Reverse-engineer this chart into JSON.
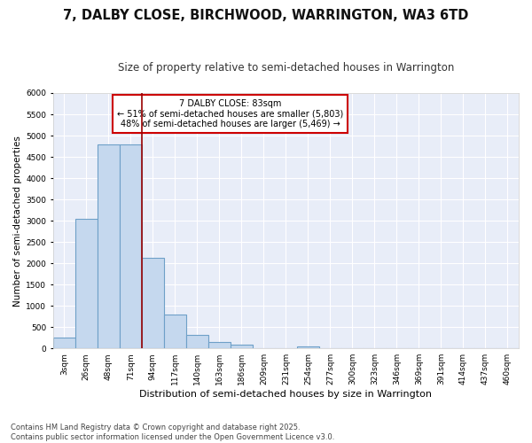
{
  "title": "7, DALBY CLOSE, BIRCHWOOD, WARRINGTON, WA3 6TD",
  "subtitle": "Size of property relative to semi-detached houses in Warrington",
  "xlabel": "Distribution of semi-detached houses by size in Warrington",
  "ylabel": "Number of semi-detached properties",
  "bar_color": "#c5d8ee",
  "bar_edge_color": "#6ea0c8",
  "bg_color": "#ffffff",
  "plot_bg_color": "#e8edf8",
  "grid_color": "#ffffff",
  "annotation_box_color": "#cc0000",
  "vline_color": "#990000",
  "categories": [
    "3sqm",
    "26sqm",
    "48sqm",
    "71sqm",
    "94sqm",
    "117sqm",
    "140sqm",
    "163sqm",
    "186sqm",
    "209sqm",
    "231sqm",
    "254sqm",
    "277sqm",
    "300sqm",
    "323sqm",
    "346sqm",
    "369sqm",
    "391sqm",
    "414sqm",
    "437sqm",
    "460sqm"
  ],
  "values": [
    255,
    3050,
    4800,
    4800,
    2120,
    800,
    310,
    155,
    80,
    0,
    0,
    50,
    0,
    0,
    0,
    0,
    0,
    0,
    0,
    0,
    0
  ],
  "property_label": "7 DALBY CLOSE: 83sqm",
  "pct_smaller": 51,
  "pct_smaller_count": 5803,
  "pct_larger": 48,
  "pct_larger_count": 5469,
  "vline_x": 3.5,
  "ylim": [
    0,
    6000
  ],
  "yticks": [
    0,
    500,
    1000,
    1500,
    2000,
    2500,
    3000,
    3500,
    4000,
    4500,
    5000,
    5500,
    6000
  ],
  "footnote": "Contains HM Land Registry data © Crown copyright and database right 2025.\nContains public sector information licensed under the Open Government Licence v3.0.",
  "title_fontsize": 10.5,
  "subtitle_fontsize": 8.5,
  "xlabel_fontsize": 8,
  "ylabel_fontsize": 7.5,
  "tick_fontsize": 6.5,
  "annot_fontsize": 7,
  "footnote_fontsize": 6
}
